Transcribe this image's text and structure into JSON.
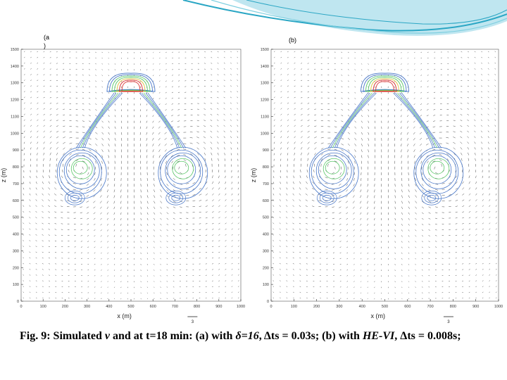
{
  "panels": [
    {
      "label": "(a",
      "label_line2": ")",
      "y_label": "z (m)",
      "x_label": "x (m)",
      "y_ticks": [
        "0",
        "100",
        "200",
        "300",
        "400",
        "500",
        "600",
        "700",
        "800",
        "900",
        "1000",
        "1100",
        "1200",
        "1300",
        "1400",
        "1500"
      ],
      "x_ticks": [
        "0",
        "100",
        "200",
        "300",
        "400",
        "500",
        "600",
        "700",
        "800",
        "900",
        "1000"
      ],
      "scale_value": "3"
    },
    {
      "label": "(b)",
      "y_label": "z (m)",
      "x_label": "x (m)",
      "y_ticks": [
        "0",
        "100",
        "200",
        "300",
        "400",
        "500",
        "600",
        "700",
        "800",
        "900",
        "1000",
        "1100",
        "1200",
        "1300",
        "1400",
        "1500"
      ],
      "x_ticks": [
        "0",
        "100",
        "200",
        "300",
        "400",
        "500",
        "600",
        "700",
        "800",
        "900",
        "1000"
      ],
      "scale_value": "3"
    }
  ],
  "caption": {
    "part1": "Fig. 9:  Simulated ",
    "v": "v",
    "part2": " and at t=18 min: (a) with ",
    "delta": "δ=16",
    "part3": ", ",
    "dts1": "Δts = 0.03s; (b) with ",
    "hevi": "HE-VI",
    "part4": ", Δts = 0.008s;"
  },
  "colors": {
    "header_dark": "#2aa6c4",
    "header_light": "#bfe6f0",
    "contour_blue": "#4a78c8",
    "contour_green": "#5cc86a",
    "contour_red": "#d83030"
  }
}
